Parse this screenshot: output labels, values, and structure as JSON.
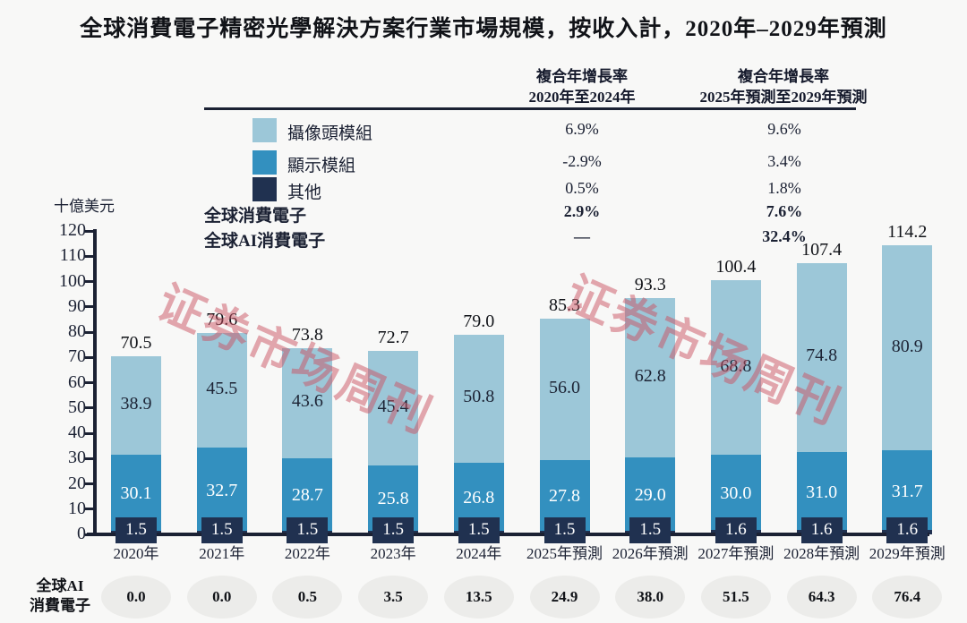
{
  "title": "全球消費電子精密光學解決方案行業市場規模，按收入計，2020年–2029年預測",
  "watermark": {
    "text": "证券市场周刊"
  },
  "cagr_table": {
    "col1_header": "複合年增長率\n2020年至2024年",
    "col2_header": "複合年增長率\n2025年預測至2029年預測",
    "rows": [
      {
        "label": "攝像頭模組",
        "swatch": "#9cc7d8",
        "v1": "6.9%",
        "v2": "9.6%",
        "bold": false
      },
      {
        "label": "顯示模組",
        "swatch": "#3390bf",
        "v1": "-2.9%",
        "v2": "3.4%",
        "bold": false
      },
      {
        "label": "其他",
        "swatch": "#203150",
        "v1": "0.5%",
        "v2": "1.8%",
        "bold": false
      },
      {
        "label": "全球消費電子",
        "swatch": null,
        "v1": "2.9%",
        "v2": "7.6%",
        "bold": true
      },
      {
        "label": "全球AI消費電子",
        "swatch": null,
        "v1": "—",
        "v2": "32.4%",
        "bold": true
      }
    ]
  },
  "chart_data": {
    "type": "bar",
    "stacked": true,
    "title": "全球消費電子精密光學解決方案行業市場規模，按收入計，2020年–2029年預測",
    "ylabel": "十億美元",
    "ylim": [
      0,
      120
    ],
    "ytick_step": 10,
    "grid": false,
    "legend_position": "top-left",
    "categories": [
      "2020年",
      "2021年",
      "2022年",
      "2023年",
      "2024年",
      "2025年預測",
      "2026年預測",
      "2027年預測",
      "2028年預測",
      "2029年預測"
    ],
    "series": [
      {
        "name": "其他",
        "color": "#203150",
        "values": [
          1.5,
          1.5,
          1.5,
          1.5,
          1.5,
          1.5,
          1.5,
          1.6,
          1.6,
          1.6
        ]
      },
      {
        "name": "顯示模組",
        "color": "#3390bf",
        "values": [
          30.1,
          32.7,
          28.7,
          25.8,
          26.8,
          27.8,
          29.0,
          30.0,
          31.0,
          31.7
        ]
      },
      {
        "name": "攝像頭模組",
        "color": "#9cc7d8",
        "values": [
          38.9,
          45.5,
          43.6,
          45.4,
          50.8,
          56.0,
          62.8,
          68.8,
          74.8,
          80.9
        ]
      }
    ],
    "totals": [
      70.5,
      79.6,
      73.8,
      72.7,
      79.0,
      85.3,
      93.3,
      100.4,
      107.4,
      114.2
    ],
    "ai_row": {
      "label": "全球AI\n消費電子",
      "values": [
        "0.0",
        "0.0",
        "0.5",
        "3.5",
        "13.5",
        "24.9",
        "38.0",
        "51.5",
        "64.3",
        "76.4"
      ]
    }
  },
  "colors": {
    "camera": "#9cc7d8",
    "display": "#3390bf",
    "other": "#203150",
    "axis": "#1b2133",
    "watermark": "rgba(201,82,98,0.5)",
    "background": "#f8f8f7",
    "ai_ellipse": "#ececea"
  }
}
